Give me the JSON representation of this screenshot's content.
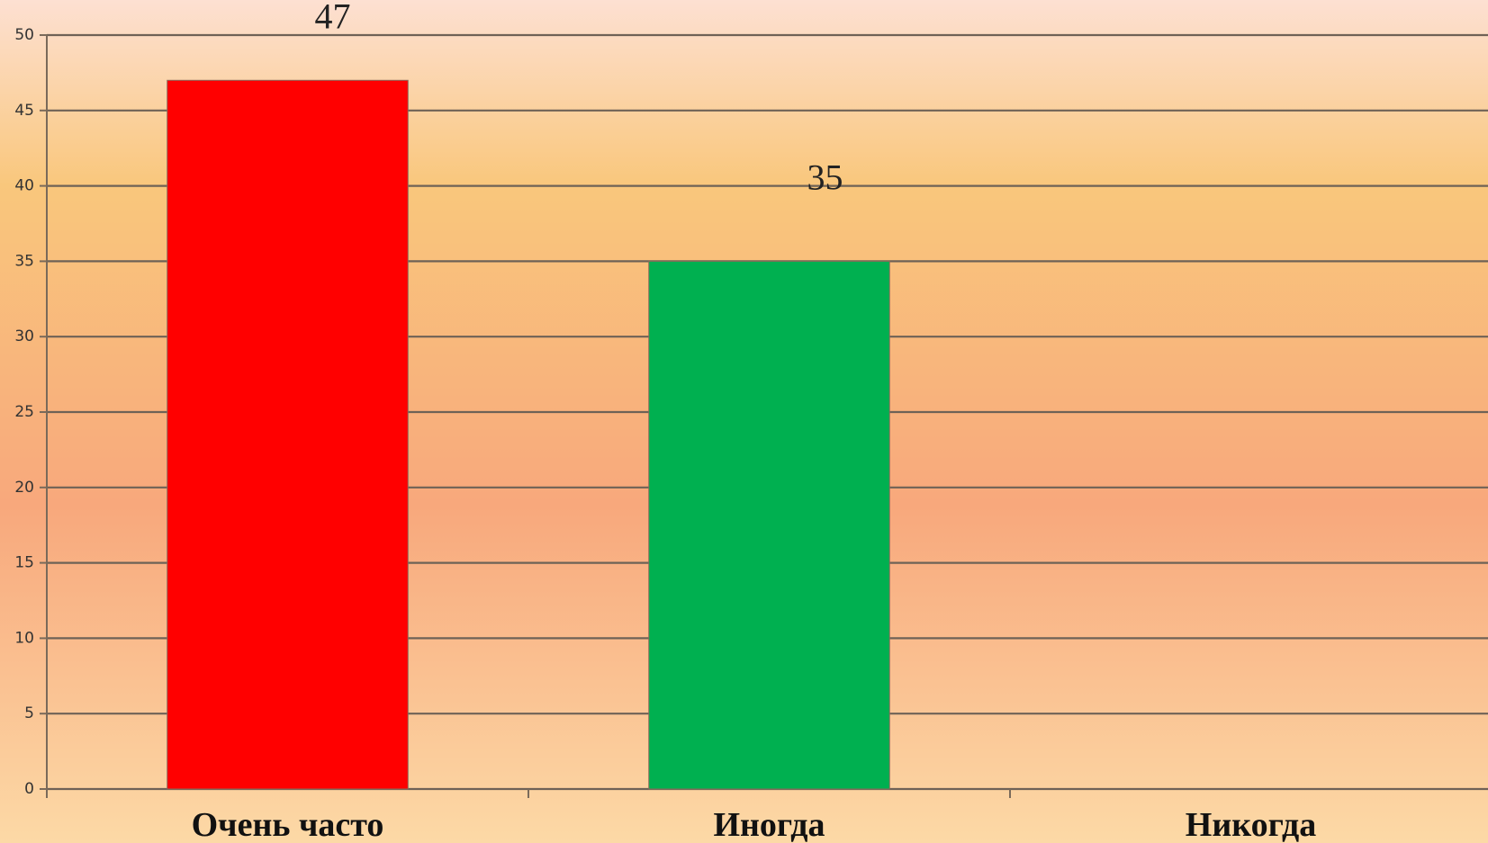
{
  "chart_data": {
    "type": "bar",
    "categories": [
      "Очень часто",
      "Иногда",
      "Никогда"
    ],
    "values": [
      47,
      35,
      null
    ],
    "colors": [
      "#ff0000",
      "#00b050",
      null
    ],
    "ylim": [
      0,
      50
    ],
    "yticks": [
      0,
      5,
      10,
      15,
      20,
      25,
      30,
      35,
      40,
      45,
      50
    ],
    "grid": true
  }
}
